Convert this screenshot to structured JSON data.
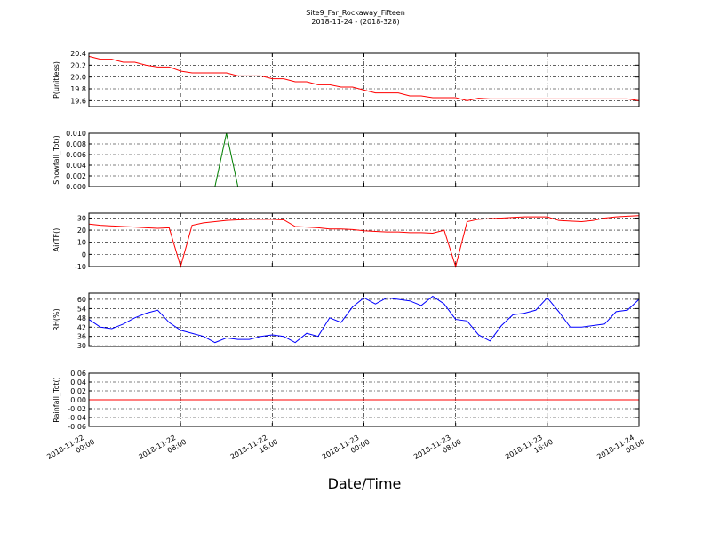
{
  "chart_data": {
    "type": "line",
    "title": "Site9_Far_Rockaway_Fifteen",
    "subtitle": "2018-11-24 - (2018-328)",
    "xlabel": "Date/Time",
    "grid": true,
    "x": [
      "2018-11-22 00:00",
      "2018-11-22 01:00",
      "2018-11-22 02:00",
      "2018-11-22 03:00",
      "2018-11-22 04:00",
      "2018-11-22 05:00",
      "2018-11-22 06:00",
      "2018-11-22 07:00",
      "2018-11-22 08:00",
      "2018-11-22 09:00",
      "2018-11-22 10:00",
      "2018-11-22 11:00",
      "2018-11-22 12:00",
      "2018-11-22 13:00",
      "2018-11-22 14:00",
      "2018-11-22 15:00",
      "2018-11-22 16:00",
      "2018-11-22 17:00",
      "2018-11-22 18:00",
      "2018-11-22 19:00",
      "2018-11-22 20:00",
      "2018-11-22 21:00",
      "2018-11-22 22:00",
      "2018-11-22 23:00",
      "2018-11-23 00:00",
      "2018-11-23 01:00",
      "2018-11-23 02:00",
      "2018-11-23 03:00",
      "2018-11-23 04:00",
      "2018-11-23 05:00",
      "2018-11-23 06:00",
      "2018-11-23 07:00",
      "2018-11-23 08:00",
      "2018-11-23 09:00",
      "2018-11-23 10:00",
      "2018-11-23 11:00",
      "2018-11-23 12:00",
      "2018-11-23 13:00",
      "2018-11-23 14:00",
      "2018-11-23 15:00",
      "2018-11-23 16:00",
      "2018-11-23 17:00",
      "2018-11-23 18:00",
      "2018-11-23 19:00",
      "2018-11-23 20:00",
      "2018-11-23 21:00",
      "2018-11-23 22:00",
      "2018-11-23 23:00",
      "2018-11-24 00:00"
    ],
    "xlim": [
      "2018-11-22 00:00",
      "2018-11-24 00:00"
    ],
    "xticks": [
      "2018-11-22 00:00",
      "2018-11-22 08:00",
      "2018-11-22 16:00",
      "2018-11-23 00:00",
      "2018-11-23 08:00",
      "2018-11-23 16:00",
      "2018-11-24 00:00"
    ],
    "panels": [
      {
        "ylabel": "P(unitless)",
        "ylim": [
          19.5,
          20.4
        ],
        "yticks": [
          19.6,
          19.8,
          {
            "value": 20,
            "label": "20.0"
          },
          20.2,
          20.4
        ],
        "series": [
          {
            "color": "#ff0000",
            "values": [
              20.35,
              20.3,
              20.3,
              20.25,
              20.25,
              20.2,
              20.17,
              20.17,
              20.1,
              20.07,
              20.07,
              20.07,
              20.07,
              20.02,
              20.02,
              20.02,
              19.97,
              19.97,
              19.92,
              19.92,
              19.87,
              19.87,
              19.83,
              19.83,
              19.78,
              19.73,
              19.73,
              19.73,
              19.68,
              19.68,
              19.65,
              19.65,
              19.65,
              19.6,
              19.64,
              19.63,
              19.63,
              19.63,
              19.63,
              19.63,
              19.63,
              19.63,
              19.63,
              19.63,
              19.63,
              19.63,
              19.63,
              19.63,
              19.6
            ]
          }
        ]
      },
      {
        "ylabel": "Snowfall_Tot()",
        "ylim": [
          0,
          0.01
        ],
        "yticks": [
          {
            "value": 0,
            "label": "0.000"
          },
          {
            "value": 0.002,
            "label": "0.002"
          },
          {
            "value": 0.004,
            "label": "0.004"
          },
          {
            "value": 0.006,
            "label": "0.006"
          },
          {
            "value": 0.008,
            "label": "0.008"
          },
          {
            "value": 0.01,
            "label": "0.010"
          }
        ],
        "series": [
          {
            "color": "#007f00",
            "values": [
              0,
              0,
              0,
              0,
              0,
              0,
              0,
              0,
              0,
              0,
              0,
              0,
              0.01,
              0,
              0,
              0,
              0,
              0,
              0,
              0,
              0,
              0,
              0,
              0,
              0,
              0,
              0,
              0,
              0,
              0,
              0,
              0,
              0,
              0,
              0,
              0,
              0,
              0,
              0,
              0,
              0,
              0,
              0,
              0,
              0,
              0,
              0,
              0,
              0
            ]
          }
        ]
      },
      {
        "ylabel": "AirTF()",
        "ylim": [
          -10,
          34
        ],
        "yticks": [
          -10,
          0,
          10,
          20,
          30
        ],
        "series": [
          {
            "color": "#ff0000",
            "values": [
              25,
              24,
              23.5,
              23,
              22.5,
              22,
              21.5,
              22,
              -10,
              24,
              26,
              27,
              28,
              28.5,
              29,
              29,
              29,
              28.5,
              23,
              22.5,
              22,
              21,
              21,
              20.5,
              19.5,
              19,
              18.5,
              18.5,
              18,
              18,
              17.5,
              20,
              -10,
              27,
              29,
              29.5,
              30,
              30.5,
              31,
              31,
              31,
              28,
              27.5,
              27,
              28,
              30,
              31,
              31.5,
              32
            ]
          }
        ]
      },
      {
        "ylabel": "RH(%)",
        "ylim": [
          29.5,
          64
        ],
        "yticks": [
          30,
          36,
          42,
          48,
          54,
          60
        ],
        "series": [
          {
            "color": "#0000ff",
            "values": [
              47,
              42,
              41,
              44,
              48,
              51,
              53,
              45,
              40,
              38,
              36,
              32,
              35,
              34,
              34,
              36,
              37,
              36,
              32,
              38,
              36,
              48,
              45,
              55,
              61,
              57,
              61,
              60,
              59,
              56,
              62,
              57,
              47,
              46,
              37,
              33,
              43,
              50,
              51,
              53,
              61,
              52,
              42,
              42,
              43,
              44,
              52,
              53,
              60
            ]
          }
        ]
      },
      {
        "ylabel": "Rainfall_Tot()",
        "ylim": [
          -0.06,
          0.06
        ],
        "yticks": [
          -0.06,
          -0.04,
          -0.02,
          {
            "value": 0,
            "label": "0.00"
          },
          0.02,
          0.04,
          0.06
        ],
        "series": [
          {
            "color": "#ff0000",
            "values": [
              0,
              0,
              0,
              0,
              0,
              0,
              0,
              0,
              0,
              0,
              0,
              0,
              0,
              0,
              0,
              0,
              0,
              0,
              0,
              0,
              0,
              0,
              0,
              0,
              0,
              0,
              0,
              0,
              0,
              0,
              0,
              0,
              0,
              0,
              0,
              0,
              0,
              0,
              0,
              0,
              0,
              0,
              0,
              0,
              0,
              0,
              0,
              0,
              0
            ]
          }
        ]
      }
    ]
  }
}
